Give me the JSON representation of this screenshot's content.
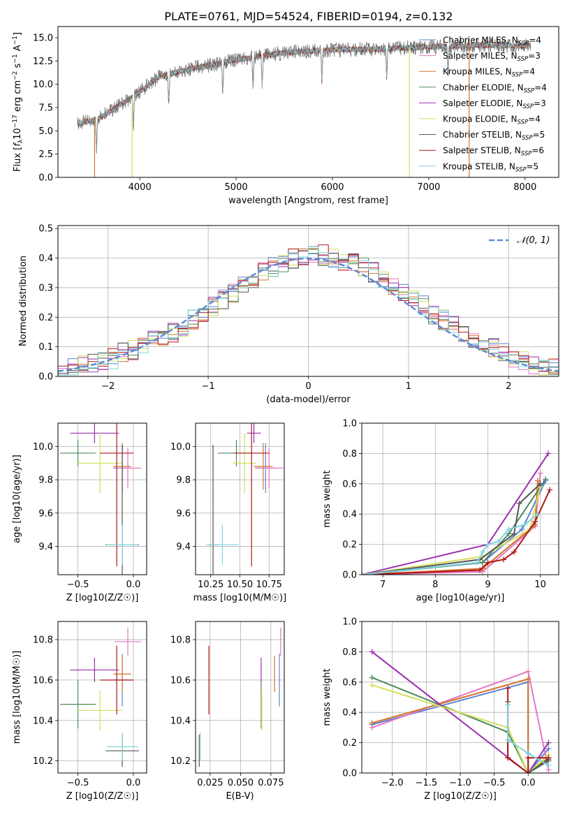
{
  "figure": {
    "title": "PLATE=0761, MJD=54524, FIBERID=0194, z=0.132"
  },
  "models": [
    {
      "key": "cm",
      "name": "Chabrier MILES, N_SSP=4",
      "label_main": "Chabrier MILES, N",
      "label_sub": "SSP",
      "label_tail": "=4",
      "color": "#5b82d6"
    },
    {
      "key": "sm",
      "name": "Salpeter MILES, N_SSP=3",
      "label_main": "Salpeter MILES, N",
      "label_sub": "SSP",
      "label_tail": "=3",
      "color": "#e377c2"
    },
    {
      "key": "km",
      "name": "Kroupa MILES, N_SSP=4",
      "label_main": "Kroupa MILES, N",
      "label_sub": "SSP",
      "label_tail": "=4",
      "color": "#d4742a"
    },
    {
      "key": "ce",
      "name": "Chabrier ELODIE, N_SSP=4",
      "label_main": "Chabrier ELODIE, N",
      "label_sub": "SSP",
      "label_tail": "=4",
      "color": "#4f8a5a"
    },
    {
      "key": "se",
      "name": "Salpeter ELODIE, N_SSP=3",
      "label_main": "Salpeter ELODIE, N",
      "label_sub": "SSP",
      "label_tail": "=3",
      "color": "#9b2fae"
    },
    {
      "key": "ke",
      "name": "Kroupa ELODIE, N_SSP=4",
      "label_main": "Kroupa ELODIE, N",
      "label_sub": "SSP",
      "label_tail": "=4",
      "color": "#d4e05a"
    },
    {
      "key": "cs",
      "name": "Chabrier STELIB, N_SSP=5",
      "label_main": "Chabrier STELIB, N",
      "label_sub": "SSP",
      "label_tail": "=5",
      "color": "#555555"
    },
    {
      "key": "ss",
      "name": "Salpeter STELIB, N_SSP=6",
      "label_main": "Salpeter STELIB, N",
      "label_sub": "SSP",
      "label_tail": "=6",
      "color": "#b01818"
    },
    {
      "key": "ks",
      "name": "Kroupa STELIB, N_SSP=5",
      "label_main": "Kroupa STELIB, N",
      "label_sub": "SSP",
      "label_tail": "=5",
      "color": "#7ed3df"
    }
  ],
  "chart_data": [
    {
      "id": "spectrum",
      "type": "line",
      "xlabel": "wavelength [Angstrom, rest frame]",
      "ylabel": "Flux [f_λ 10^-17 erg cm^-2 s^-1 A^-1]",
      "xlim": [
        3150,
        8350
      ],
      "ylim": [
        0,
        16.2
      ],
      "xticks": [
        4000,
        5000,
        6000,
        7000,
        8000
      ],
      "yticks": [
        0.0,
        2.5,
        5.0,
        7.5,
        10.0,
        12.5,
        15.0
      ],
      "grid": false,
      "legend": "top-right",
      "spectrum_anchor_points": [
        {
          "x": 3350,
          "y": 5.8
        },
        {
          "x": 3550,
          "y": 6.2
        },
        {
          "x": 3800,
          "y": 7.8
        },
        {
          "x": 4000,
          "y": 9.2
        },
        {
          "x": 4200,
          "y": 10.8
        },
        {
          "x": 4500,
          "y": 11.6
        },
        {
          "x": 5000,
          "y": 12.6
        },
        {
          "x": 5500,
          "y": 13.4
        },
        {
          "x": 6000,
          "y": 13.7
        },
        {
          "x": 6500,
          "y": 13.8
        },
        {
          "x": 7000,
          "y": 14.0
        },
        {
          "x": 7500,
          "y": 14.2
        },
        {
          "x": 8000,
          "y": 14.1
        },
        {
          "x": 8050,
          "y": 14.2
        }
      ],
      "spectrum_dips": [
        3550,
        3933,
        4300,
        4861,
        5175,
        5270,
        5890,
        6563,
        7200
      ],
      "zero_drop_lines": [
        3530,
        3920,
        6800,
        7420
      ]
    },
    {
      "id": "residuals",
      "type": "histogram",
      "xlabel": "(data-model)/error",
      "ylabel": "Normed distribution",
      "xlim": [
        -2.5,
        2.5
      ],
      "ylim": [
        0,
        0.51
      ],
      "xticks": [
        -2,
        -1,
        0,
        1,
        2
      ],
      "yticks": [
        0.0,
        0.1,
        0.2,
        0.3,
        0.4,
        0.5
      ],
      "grid": true,
      "legend": "top-right",
      "reference_curve": {
        "name": "𝒩(0, 1)",
        "mean": 0,
        "sigma": 1,
        "color": "#5b8bd6",
        "style": "dashed"
      },
      "bin_edges": [
        -2.5,
        -2.4,
        -2.3,
        -2.2,
        -2.1,
        -2.0,
        -1.9,
        -1.8,
        -1.7,
        -1.6,
        -1.5,
        -1.4,
        -1.3,
        -1.2,
        -1.1,
        -1.0,
        -0.9,
        -0.8,
        -0.7,
        -0.6,
        -0.5,
        -0.4,
        -0.3,
        -0.2,
        -0.1,
        0.0,
        0.1,
        0.2,
        0.3,
        0.4,
        0.5,
        0.6,
        0.7,
        0.8,
        0.9,
        1.0,
        1.1,
        1.2,
        1.3,
        1.4,
        1.5,
        1.6,
        1.7,
        1.8,
        1.9,
        2.0,
        2.1,
        2.2,
        2.3,
        2.4,
        2.5
      ],
      "base_values": [
        0.02,
        0.025,
        0.035,
        0.04,
        0.05,
        0.06,
        0.08,
        0.09,
        0.1,
        0.12,
        0.13,
        0.15,
        0.17,
        0.19,
        0.21,
        0.24,
        0.26,
        0.28,
        0.31,
        0.33,
        0.35,
        0.37,
        0.38,
        0.4,
        0.41,
        0.42,
        0.41,
        0.4,
        0.39,
        0.38,
        0.37,
        0.35,
        0.33,
        0.31,
        0.28,
        0.26,
        0.24,
        0.21,
        0.19,
        0.17,
        0.15,
        0.13,
        0.11,
        0.1,
        0.08,
        0.06,
        0.05,
        0.04,
        0.03,
        0.025
      ]
    },
    {
      "id": "age-vs-Z",
      "type": "scatter-errorbar",
      "xlabel": "Z [log10(Z/Z☉)]",
      "ylabel": "age  [log10(age/yr)]",
      "xlim": [
        -0.68,
        0.12
      ],
      "ylim": [
        9.23,
        10.14
      ],
      "xticks": [
        -0.5,
        0.0
      ],
      "yticks": [
        9.4,
        9.6,
        9.8,
        10.0
      ],
      "grid": true,
      "points": [
        {
          "model": "cm",
          "x": -0.1,
          "xerr": 0.08,
          "y": 9.87,
          "yerr": 0.15
        },
        {
          "model": "sm",
          "x": -0.05,
          "xerr": 0.12,
          "y": 9.87,
          "yerr": 0.12
        },
        {
          "model": "km",
          "x": -0.1,
          "xerr": 0.08,
          "y": 9.88,
          "yerr": 0.14
        },
        {
          "model": "ce",
          "x": -0.5,
          "xerr": 0.16,
          "y": 9.96,
          "yerr": 0.08
        },
        {
          "model": "se",
          "x": -0.35,
          "xerr": 0.22,
          "y": 10.08,
          "yerr": 0.06
        },
        {
          "model": "ke",
          "x": -0.3,
          "xerr": 0.2,
          "y": 9.9,
          "yerr": 0.18
        },
        {
          "model": "cs",
          "x": -0.1,
          "xerr": 0.15,
          "y": 9.41,
          "yerr": 0.6
        },
        {
          "model": "ss",
          "x": -0.15,
          "xerr": 0.15,
          "y": 9.96,
          "yerr": 0.68
        },
        {
          "model": "ks",
          "x": -0.1,
          "xerr": 0.14,
          "y": 9.41,
          "yerr": 0.12
        }
      ]
    },
    {
      "id": "age-vs-mass",
      "type": "scatter-errorbar",
      "xlabel": "mass [log10(M/M☉)]",
      "ylabel": "",
      "xlim": [
        10.12,
        10.88
      ],
      "ylim": [
        9.23,
        10.14
      ],
      "xticks": [
        10.25,
        10.5,
        10.75
      ],
      "yticks": [
        9.4,
        9.6,
        9.8,
        10.0
      ],
      "grid": true,
      "points": [
        {
          "model": "cm",
          "x": 10.72,
          "xerr": 0.08,
          "y": 9.87,
          "yerr": 0.15
        },
        {
          "model": "sm",
          "x": 10.75,
          "xerr": 0.12,
          "y": 9.87,
          "yerr": 0.12
        },
        {
          "model": "km",
          "x": 10.7,
          "xerr": 0.08,
          "y": 9.88,
          "yerr": 0.14
        },
        {
          "model": "ce",
          "x": 10.47,
          "xerr": 0.16,
          "y": 9.96,
          "yerr": 0.08
        },
        {
          "model": "se",
          "x": 10.62,
          "xerr": 0.06,
          "y": 10.08,
          "yerr": 0.06
        },
        {
          "model": "ke",
          "x": 10.54,
          "xerr": 0.1,
          "y": 9.9,
          "yerr": 0.18
        },
        {
          "model": "cs",
          "x": 10.27,
          "xerr": 0.04,
          "y": 9.41,
          "yerr": 0.6
        },
        {
          "model": "ss",
          "x": 10.6,
          "xerr": 0.15,
          "y": 9.96,
          "yerr": 0.68
        },
        {
          "model": "ks",
          "x": 10.35,
          "xerr": 0.14,
          "y": 9.41,
          "yerr": 0.12
        }
      ]
    },
    {
      "id": "massweight-vs-age",
      "type": "line",
      "xlabel": "age  [log10(age/yr)]",
      "ylabel": "mass weight",
      "xlim": [
        6.6,
        10.35
      ],
      "ylim": [
        0,
        1.0
      ],
      "xticks": [
        7,
        8,
        9,
        10
      ],
      "yticks": [
        0.0,
        0.2,
        0.4,
        0.6,
        0.8,
        1.0
      ],
      "grid": true,
      "series": [
        {
          "model": "cm",
          "x": [
            6.6,
            8.9,
            9.65,
            10.1
          ],
          "y": [
            0.0,
            0.08,
            0.3,
            0.62
          ]
        },
        {
          "model": "sm",
          "x": [
            6.6,
            8.9,
            9.9,
            10.0
          ],
          "y": [
            0.0,
            0.02,
            0.32,
            0.67
          ]
        },
        {
          "model": "km",
          "x": [
            6.6,
            8.9,
            9.9,
            9.95
          ],
          "y": [
            0.0,
            0.04,
            0.33,
            0.62
          ]
        },
        {
          "model": "ce",
          "x": [
            6.6,
            8.9,
            9.4,
            10.1
          ],
          "y": [
            0.0,
            0.08,
            0.27,
            0.63
          ]
        },
        {
          "model": "se",
          "x": [
            6.6,
            9.0,
            10.15
          ],
          "y": [
            0.0,
            0.2,
            0.8
          ]
        },
        {
          "model": "ke",
          "x": [
            6.6,
            8.9,
            9.8,
            10.0
          ],
          "y": [
            0.0,
            0.12,
            0.3,
            0.58
          ]
        },
        {
          "model": "cs",
          "x": [
            6.6,
            8.85,
            9.5,
            9.6,
            10.0
          ],
          "y": [
            0.0,
            0.1,
            0.27,
            0.47,
            0.6
          ]
        },
        {
          "model": "ss",
          "x": [
            6.6,
            8.85,
            9.0,
            9.3,
            9.5,
            9.9,
            10.18
          ],
          "y": [
            0.0,
            0.03,
            0.08,
            0.1,
            0.15,
            0.35,
            0.56
          ]
        },
        {
          "model": "ks",
          "x": [
            6.6,
            8.8,
            8.9,
            9.0,
            9.2,
            9.4,
            9.7,
            9.95
          ],
          "y": [
            0.0,
            0.08,
            0.15,
            0.2,
            0.22,
            0.3,
            0.33,
            0.4
          ]
        }
      ]
    },
    {
      "id": "mass-vs-Z",
      "type": "scatter-errorbar",
      "xlabel": "Z [log10(Z/Z☉)]",
      "ylabel": "mass [log10(M/M☉)]",
      "xlim": [
        -0.68,
        0.12
      ],
      "ylim": [
        10.14,
        10.89
      ],
      "xticks": [
        -0.5,
        0.0
      ],
      "yticks": [
        10.2,
        10.4,
        10.6,
        10.8
      ],
      "grid": true,
      "points": [
        {
          "model": "cm",
          "x": -0.1,
          "xerr": 0.08,
          "y": 10.6,
          "yerr": 0.13
        },
        {
          "model": "sm",
          "x": -0.05,
          "xerr": 0.12,
          "y": 10.79,
          "yerr": 0.07
        },
        {
          "model": "km",
          "x": -0.1,
          "xerr": 0.08,
          "y": 10.63,
          "yerr": 0.09
        },
        {
          "model": "ce",
          "x": -0.5,
          "xerr": 0.16,
          "y": 10.48,
          "yerr": 0.12
        },
        {
          "model": "se",
          "x": -0.35,
          "xerr": 0.22,
          "y": 10.65,
          "yerr": 0.06
        },
        {
          "model": "ke",
          "x": -0.3,
          "xerr": 0.2,
          "y": 10.45,
          "yerr": 0.1
        },
        {
          "model": "cs",
          "x": -0.1,
          "xerr": 0.15,
          "y": 10.25,
          "yerr": 0.08
        },
        {
          "model": "ss",
          "x": -0.15,
          "xerr": 0.15,
          "y": 10.6,
          "yerr": 0.17
        },
        {
          "model": "ks",
          "x": -0.1,
          "xerr": 0.14,
          "y": 10.27,
          "yerr": 0.07
        }
      ]
    },
    {
      "id": "mass-vs-ebv",
      "type": "scatter-errorbar",
      "xlabel": "E(B-V)",
      "ylabel": "",
      "xlim": [
        0.013,
        0.086
      ],
      "ylim": [
        10.14,
        10.89
      ],
      "xticks": [
        0.025,
        0.05,
        0.075
      ],
      "yticks": [
        10.2,
        10.4,
        10.6,
        10.8
      ],
      "grid": true,
      "points": [
        {
          "model": "cm",
          "x": 0.082,
          "y": 10.6,
          "yerr": 0.13
        },
        {
          "model": "sm",
          "x": 0.083,
          "y": 10.79,
          "yerr": 0.07
        },
        {
          "model": "km",
          "x": 0.078,
          "y": 10.63,
          "yerr": 0.09
        },
        {
          "model": "ce",
          "x": 0.067,
          "y": 10.48,
          "yerr": 0.12
        },
        {
          "model": "se",
          "x": 0.067,
          "y": 10.65,
          "yerr": 0.06
        },
        {
          "model": "ke",
          "x": 0.0675,
          "y": 10.45,
          "yerr": 0.1
        },
        {
          "model": "cs",
          "x": 0.016,
          "y": 10.25,
          "yerr": 0.08
        },
        {
          "model": "ss",
          "x": 0.024,
          "y": 10.6,
          "yerr": 0.17
        },
        {
          "model": "ks",
          "x": 0.017,
          "y": 10.27,
          "yerr": 0.07
        }
      ]
    },
    {
      "id": "massweight-vs-Z",
      "type": "line",
      "xlabel": "Z [log10(Z/Z☉)]",
      "ylabel": "mass weight",
      "xlim": [
        -2.45,
        0.45
      ],
      "ylim": [
        0,
        1.0
      ],
      "xticks": [
        -2.0,
        -1.5,
        -1.0,
        -0.5,
        0.0
      ],
      "yticks": [
        0.0,
        0.2,
        0.4,
        0.6,
        0.8,
        1.0
      ],
      "grid": true,
      "series": [
        {
          "model": "cm",
          "x": [
            -2.3,
            0.0,
            0.0,
            0.3
          ],
          "y": [
            0.32,
            0.6,
            0.0,
            0.16
          ]
        },
        {
          "model": "sm",
          "x": [
            -2.3,
            0.0,
            0.3
          ],
          "y": [
            0.3,
            0.67,
            0.02
          ]
        },
        {
          "model": "km",
          "x": [
            -2.3,
            0.0,
            0.0,
            0.3
          ],
          "y": [
            0.33,
            0.62,
            0.0,
            0.1
          ]
        },
        {
          "model": "ce",
          "x": [
            -2.3,
            -0.3,
            0.0,
            0.3
          ],
          "y": [
            0.63,
            0.27,
            0.0,
            0.08
          ]
        },
        {
          "model": "se",
          "x": [
            -2.3,
            0.0,
            0.3
          ],
          "y": [
            0.8,
            0.0,
            0.2
          ]
        },
        {
          "model": "ke",
          "x": [
            -2.3,
            -0.3,
            0.0,
            0.3
          ],
          "y": [
            0.58,
            0.3,
            0.0,
            0.12
          ]
        },
        {
          "model": "cs",
          "x": [
            -0.3,
            -0.3,
            0.0,
            0.3
          ],
          "y": [
            0.47,
            0.1,
            0.0,
            0.09
          ]
        },
        {
          "model": "ss",
          "x": [
            -0.3,
            -0.3,
            0.0,
            0.0,
            0.3
          ],
          "y": [
            0.56,
            0.1,
            0.0,
            0.1,
            0.1
          ]
        },
        {
          "model": "ks",
          "x": [
            -0.3,
            -0.3,
            0.0,
            0.3
          ],
          "y": [
            0.45,
            0.22,
            0.13,
            0.05
          ]
        }
      ]
    }
  ]
}
